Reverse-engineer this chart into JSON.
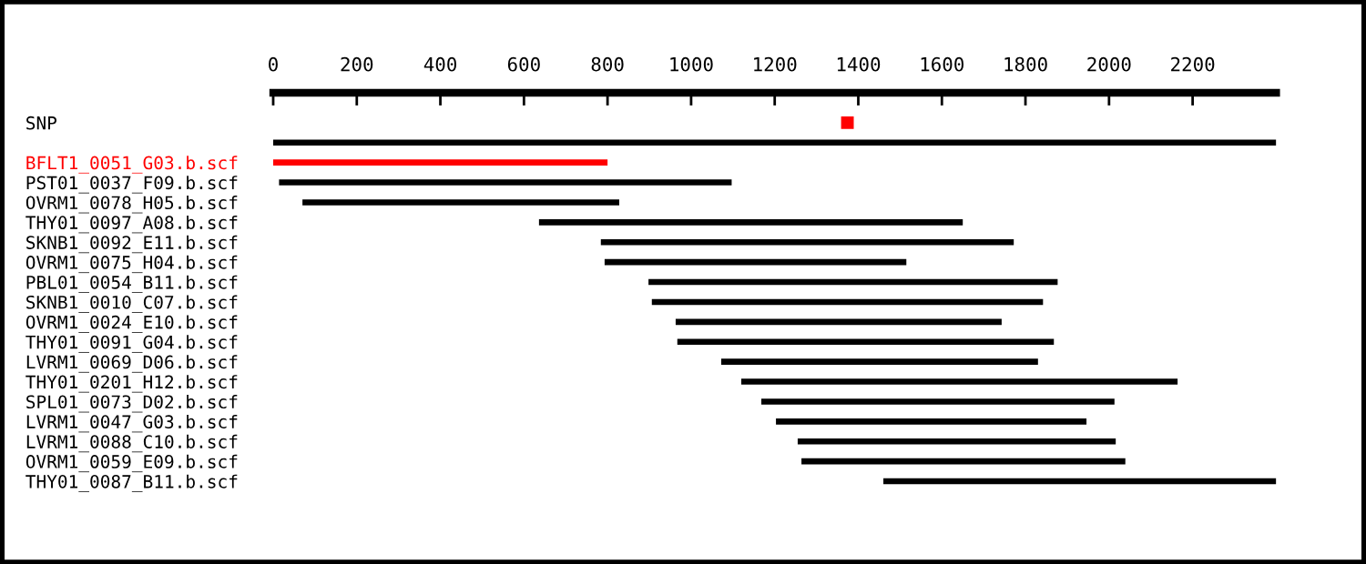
{
  "chart_data": {
    "type": "bar",
    "orientation": "horizontal",
    "categories": [
      "SNP",
      null,
      "BFLT1_0051_G03.b.scf",
      "PST01_0037_F09.b.scf",
      "OVRM1_0078_H05.b.scf",
      "THY01_0097_A08.b.scf",
      "SKNB1_0092_E11.b.scf",
      "OVRM1_0075_H04.b.scf",
      "PBL01_0054_B11.b.scf",
      "SKNB1_0010_C07.b.scf",
      "OVRM1_0024_E10.b.scf",
      "THY01_0091_G04.b.scf",
      "LVRM1_0069_D06.b.scf",
      "THY01_0201_H12.b.scf",
      "SPL01_0073_D02.b.scf",
      "LVRM1_0047_G03.b.scf",
      "LVRM1_0088_C10.b.scf",
      "OVRM1_0059_E09.b.scf",
      "THY01_0087_B11.b.scf"
    ],
    "series": [
      {
        "base": [
          null,
          0,
          0,
          14,
          70,
          636,
          784,
          793,
          898,
          906,
          963,
          967,
          1072,
          1120,
          1168,
          1203,
          1255,
          1264,
          1460
        ],
        "values": [
          null,
          2400,
          800,
          1083,
          758,
          1014,
          988,
          722,
          979,
          936,
          780,
          901,
          758,
          1044,
          845,
          743,
          761,
          775,
          940
        ],
        "colors": [
          null,
          "#000000",
          "#ff0000",
          "#000000",
          "#000000",
          "#000000",
          "#000000",
          "#000000",
          "#000000",
          "#000000",
          "#000000",
          "#000000",
          "#000000",
          "#000000",
          "#000000",
          "#000000",
          "#000000",
          "#000000",
          "#000000"
        ]
      },
      {
        "type": "scatter",
        "marker": "square",
        "color": "#ff0000",
        "values": [
          1374,
          null,
          null,
          null,
          null,
          null,
          null,
          null,
          null,
          null,
          null,
          null,
          null,
          null,
          null,
          null,
          null,
          null,
          null
        ]
      }
    ],
    "xlim": [
      0,
      2400
    ],
    "xticks": [
      0,
      200,
      400,
      600,
      800,
      1000,
      1200,
      1400,
      1600,
      1800,
      2000,
      2200
    ],
    "grid": false,
    "legend": false
  }
}
